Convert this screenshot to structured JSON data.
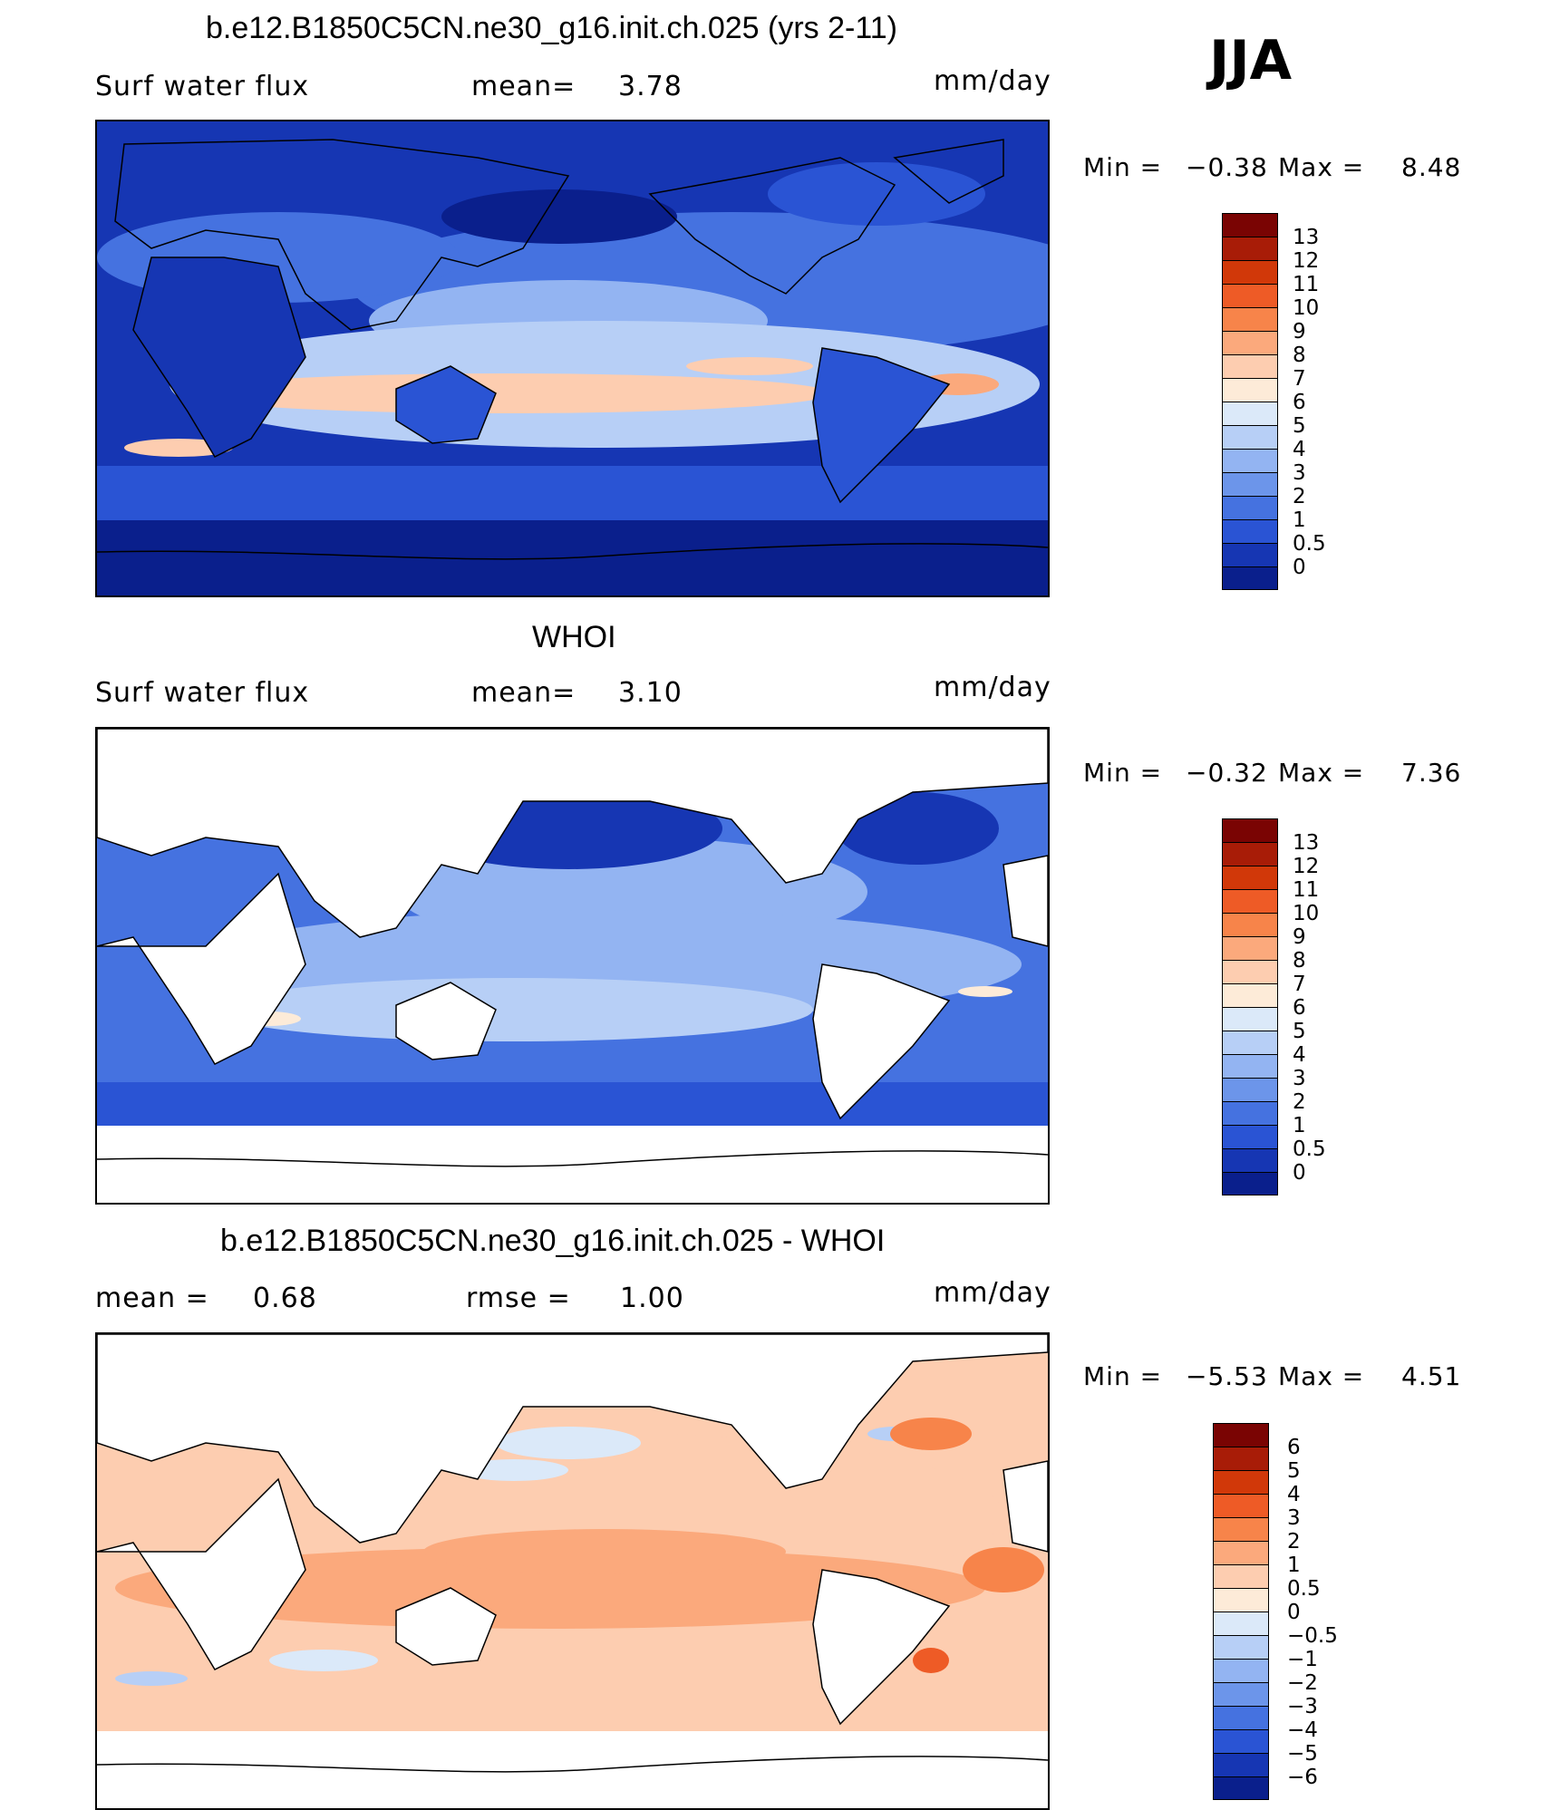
{
  "season": "JJA",
  "panels": [
    {
      "title": "b.e12.B1850C5CN.ne30_g16.init.ch.025 (yrs 2-11)",
      "left_label": "Surf water flux",
      "mid_label": "mean=",
      "mid_value": "3.78",
      "units": "mm/day",
      "min_label": "Min =",
      "min_value": "−0.38",
      "max_label": "Max =",
      "max_value": "8.48"
    },
    {
      "title": "WHOI",
      "left_label": "Surf water flux",
      "mid_label": "mean=",
      "mid_value": "3.10",
      "units": "mm/day",
      "min_label": "Min =",
      "min_value": "−0.32",
      "max_label": "Max =",
      "max_value": "7.36"
    },
    {
      "title": "b.e12.B1850C5CN.ne30_g16.init.ch.025 - WHOI",
      "left_label": "mean =",
      "left_value": "0.68",
      "mid_label": "rmse =",
      "mid_value": "1.00",
      "units": "mm/day",
      "min_label": "Min =",
      "min_value": "−5.53",
      "max_label": "Max =",
      "max_value": "4.51"
    }
  ],
  "colorbars": {
    "absolute": {
      "labels": [
        "13",
        "12",
        "11",
        "10",
        "9",
        "8",
        "7",
        "6",
        "5",
        "4",
        "3",
        "2",
        "1",
        "0.5",
        "0"
      ],
      "colors": [
        "#7a0403",
        "#a81c07",
        "#d13809",
        "#ee5b26",
        "#f7844a",
        "#fba97c",
        "#fdcdb0",
        "#fdebd8",
        "#dbe9f9",
        "#b7cff6",
        "#93b4f2",
        "#6c95ea",
        "#4572e0",
        "#2a54d4",
        "#1636b3",
        "#0a1f8c"
      ]
    },
    "difference": {
      "labels": [
        "6",
        "5",
        "4",
        "3",
        "2",
        "1",
        "0.5",
        "0",
        "−0.5",
        "−1",
        "−2",
        "−3",
        "−4",
        "−5",
        "−6"
      ],
      "colors": [
        "#7a0403",
        "#a81c07",
        "#d13809",
        "#ee5b26",
        "#f7844a",
        "#fba97c",
        "#fdcdb0",
        "#fdebd8",
        "#dbe9f9",
        "#b7cff6",
        "#93b4f2",
        "#6c95ea",
        "#4572e0",
        "#2a54d4",
        "#1636b3",
        "#0a1f8c"
      ]
    }
  }
}
